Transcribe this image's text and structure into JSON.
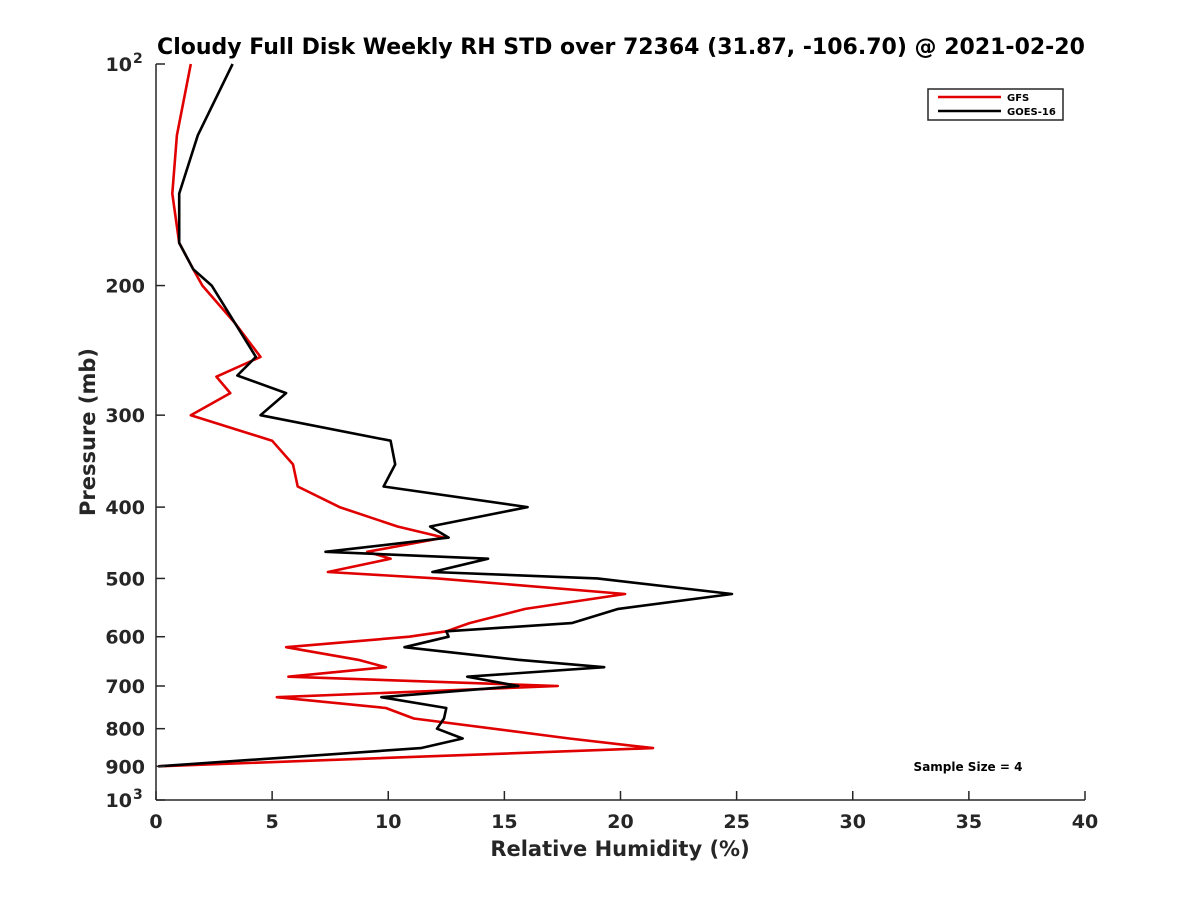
{
  "chart_data": {
    "type": "line",
    "title": "Cloudy Full Disk Weekly RH STD over 72364 (31.87, -106.70) @ 2021-02-20",
    "xlabel": "Relative Humidity (%)",
    "ylabel": "Pressure (mb)",
    "xlim": [
      0,
      40
    ],
    "ylim": [
      100,
      1000
    ],
    "y_scale": "log",
    "y_reversed": true,
    "x_ticks": [
      0,
      5,
      10,
      15,
      20,
      25,
      30,
      35,
      40
    ],
    "y_ticks": [
      {
        "value": 100,
        "label": "10",
        "sup": "2"
      },
      {
        "value": 200,
        "label": "200",
        "sup": ""
      },
      {
        "value": 300,
        "label": "300",
        "sup": ""
      },
      {
        "value": 400,
        "label": "400",
        "sup": ""
      },
      {
        "value": 500,
        "label": "500",
        "sup": ""
      },
      {
        "value": 600,
        "label": "600",
        "sup": ""
      },
      {
        "value": 700,
        "label": "700",
        "sup": ""
      },
      {
        "value": 800,
        "label": "800",
        "sup": ""
      },
      {
        "value": 900,
        "label": "900",
        "sup": ""
      },
      {
        "value": 1000,
        "label": "10",
        "sup": "3"
      }
    ],
    "grid": false,
    "legend_position": "top-right",
    "annotation": "Sample Size = 4",
    "series": [
      {
        "name": "GFS",
        "color": "#e00000",
        "points": [
          [
            1.5,
            100
          ],
          [
            0.9,
            125
          ],
          [
            0.7,
            150
          ],
          [
            1.0,
            175
          ],
          [
            1.6,
            190
          ],
          [
            2.0,
            200
          ],
          [
            3.4,
            225
          ],
          [
            4.5,
            250
          ],
          [
            2.6,
            266
          ],
          [
            3.2,
            280
          ],
          [
            1.5,
            300
          ],
          [
            5.0,
            325
          ],
          [
            5.9,
            350
          ],
          [
            6.1,
            375
          ],
          [
            7.9,
            400
          ],
          [
            10.4,
            425
          ],
          [
            12.4,
            440
          ],
          [
            9.1,
            460
          ],
          [
            10.1,
            470
          ],
          [
            7.4,
            490
          ],
          [
            12.1,
            500
          ],
          [
            20.2,
            525
          ],
          [
            15.9,
            550
          ],
          [
            13.5,
            575
          ],
          [
            12.5,
            590
          ],
          [
            10.9,
            600
          ],
          [
            5.6,
            620
          ],
          [
            8.7,
            645
          ],
          [
            9.9,
            660
          ],
          [
            5.7,
            680
          ],
          [
            17.3,
            700
          ],
          [
            5.2,
            725
          ],
          [
            9.9,
            750
          ],
          [
            11.1,
            775
          ],
          [
            17.8,
            825
          ],
          [
            21.4,
            850
          ],
          [
            0.1,
            900
          ]
        ]
      },
      {
        "name": "GOES-16",
        "color": "#000000",
        "points": [
          [
            3.3,
            100
          ],
          [
            1.8,
            125
          ],
          [
            1.0,
            150
          ],
          [
            1.0,
            175
          ],
          [
            1.6,
            190
          ],
          [
            2.4,
            200
          ],
          [
            3.4,
            225
          ],
          [
            4.3,
            250
          ],
          [
            3.5,
            265
          ],
          [
            5.6,
            280
          ],
          [
            4.5,
            300
          ],
          [
            10.1,
            325
          ],
          [
            10.3,
            350
          ],
          [
            9.8,
            375
          ],
          [
            16.0,
            400
          ],
          [
            11.8,
            425
          ],
          [
            12.6,
            440
          ],
          [
            7.3,
            460
          ],
          [
            14.3,
            470
          ],
          [
            11.9,
            490
          ],
          [
            19.0,
            500
          ],
          [
            24.8,
            525
          ],
          [
            19.9,
            550
          ],
          [
            17.9,
            575
          ],
          [
            12.5,
            590
          ],
          [
            12.6,
            600
          ],
          [
            10.7,
            620
          ],
          [
            15.6,
            645
          ],
          [
            19.3,
            660
          ],
          [
            13.4,
            680
          ],
          [
            15.6,
            700
          ],
          [
            9.7,
            725
          ],
          [
            12.5,
            750
          ],
          [
            12.4,
            775
          ],
          [
            12.1,
            800
          ],
          [
            13.2,
            825
          ],
          [
            11.4,
            850
          ],
          [
            0.1,
            900
          ]
        ]
      }
    ]
  }
}
